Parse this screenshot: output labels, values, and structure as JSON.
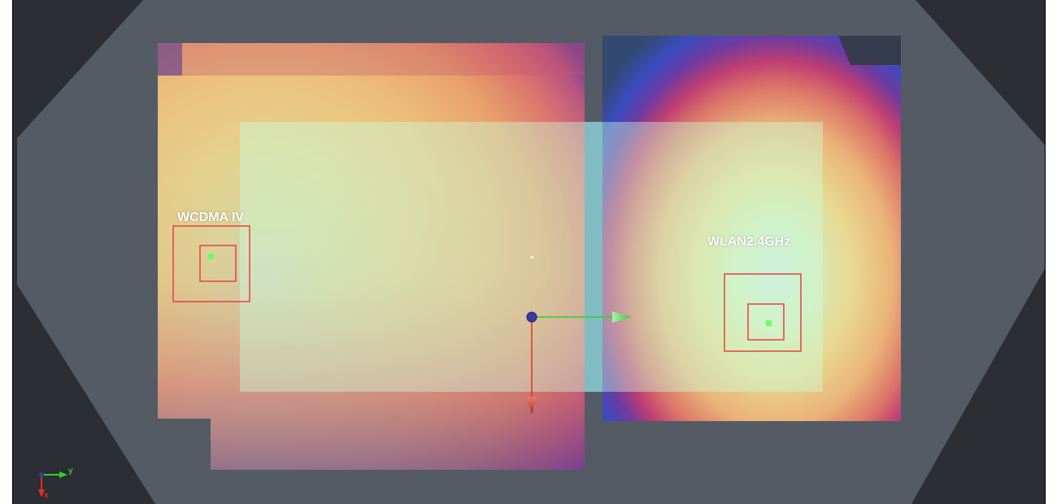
{
  "scene": {
    "bg_outer": "#2a2d33",
    "bg_plate": "#545b64",
    "overlay_color": "#c9ffe0"
  },
  "antennas": [
    {
      "label": "WCDMA IV",
      "marker_color": "#66ff66",
      "box_color": "#e84040"
    },
    {
      "label": "WLAN2.4GHz",
      "marker_color": "#66ff66",
      "box_color": "#e84040"
    }
  ],
  "gizmo": {
    "x_axis_color": "#e03020",
    "y_axis_color": "#30d030",
    "origin_color": "#3030a0"
  },
  "mini_axes": {
    "x_label": "x",
    "y_label": "y"
  },
  "icons": [
    "3d-translate-gizmo-icon",
    "orientation-triad-icon"
  ]
}
